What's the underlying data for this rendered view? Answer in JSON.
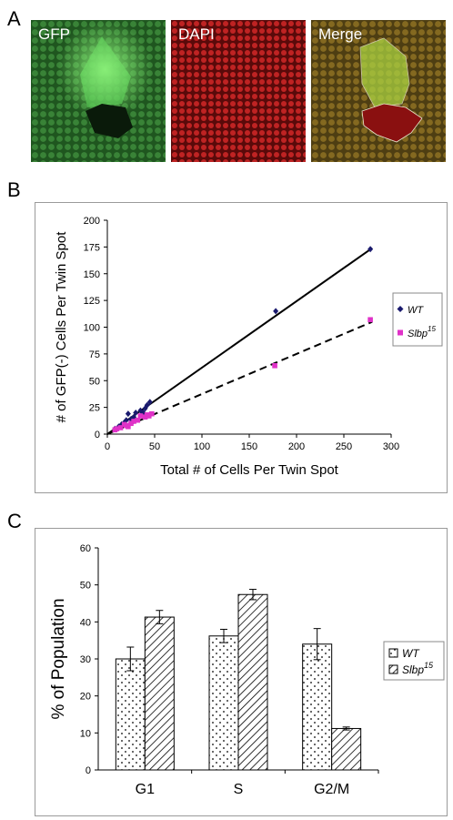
{
  "panels": {
    "a": {
      "letter": "A",
      "images": [
        {
          "label": "GFP",
          "base": "#1e5a1e",
          "hi": "#3faa3f",
          "spot": "#79e06a",
          "dark": "#0b1f0b"
        },
        {
          "label": "DAPI",
          "base": "#7a1010",
          "hi": "#d02424",
          "spot": "#ee3333",
          "dark": "#3a0606"
        },
        {
          "label": "Merge",
          "base": "#5a4a12",
          "hi": "#9a7a20",
          "spot": "#b8d050",
          "dark": "#7a0c0c"
        }
      ]
    },
    "b": {
      "letter": "B"
    },
    "c": {
      "letter": "C"
    }
  },
  "chart_data": [
    {
      "type": "scatter",
      "xlabel": "Total # of Cells Per Twin Spot",
      "ylabel": "# of GFP(-) Cells Per Twin Spot",
      "xlim": [
        0,
        300
      ],
      "ylim": [
        0,
        200
      ],
      "xticks": [
        0,
        50,
        100,
        150,
        200,
        250,
        300
      ],
      "yticks": [
        0,
        25,
        50,
        75,
        100,
        125,
        150,
        175,
        200
      ],
      "grid": false,
      "legend_position": "right",
      "series": [
        {
          "name": "WT",
          "superscript": "",
          "color": "#1a1a6e",
          "marker": "diamond",
          "trendline": "solid",
          "fit": [
            [
              0,
              0
            ],
            [
              280,
              174
            ]
          ],
          "points": [
            [
              8,
              5
            ],
            [
              12,
              7
            ],
            [
              15,
              9
            ],
            [
              18,
              11
            ],
            [
              20,
              13
            ],
            [
              22,
              19
            ],
            [
              25,
              14
            ],
            [
              28,
              16
            ],
            [
              30,
              20
            ],
            [
              35,
              22
            ],
            [
              38,
              20
            ],
            [
              40,
              24
            ],
            [
              42,
              27
            ],
            [
              45,
              30
            ],
            [
              178,
              115
            ],
            [
              278,
              173
            ]
          ]
        },
        {
          "name": "Slbp",
          "superscript": "15",
          "color": "#e032c8",
          "marker": "square",
          "trendline": "dashed",
          "fit": [
            [
              0,
              0
            ],
            [
              280,
              105
            ]
          ],
          "points": [
            [
              8,
              4
            ],
            [
              10,
              5
            ],
            [
              14,
              6
            ],
            [
              18,
              9
            ],
            [
              20,
              8
            ],
            [
              22,
              7
            ],
            [
              25,
              10
            ],
            [
              28,
              12
            ],
            [
              32,
              13
            ],
            [
              35,
              17
            ],
            [
              40,
              16
            ],
            [
              42,
              18
            ],
            [
              44,
              17
            ],
            [
              47,
              19
            ],
            [
              177,
              64
            ],
            [
              278,
              107
            ]
          ]
        }
      ]
    },
    {
      "type": "bar",
      "categories": [
        "G1",
        "S",
        "G2/M"
      ],
      "ylabel": "% of Population",
      "ylim": [
        0,
        60
      ],
      "yticks": [
        0,
        10,
        20,
        30,
        40,
        50,
        60
      ],
      "grid": false,
      "legend_position": "right",
      "series": [
        {
          "name": "WT",
          "superscript": "",
          "pattern": "dots",
          "values": [
            30,
            36.2,
            34
          ],
          "errors": [
            3.2,
            1.8,
            4.2
          ]
        },
        {
          "name": "Slbp",
          "superscript": "15",
          "pattern": "hatch",
          "values": [
            41.3,
            47.4,
            11.2
          ],
          "errors": [
            1.8,
            1.4,
            0.4
          ]
        }
      ]
    }
  ]
}
